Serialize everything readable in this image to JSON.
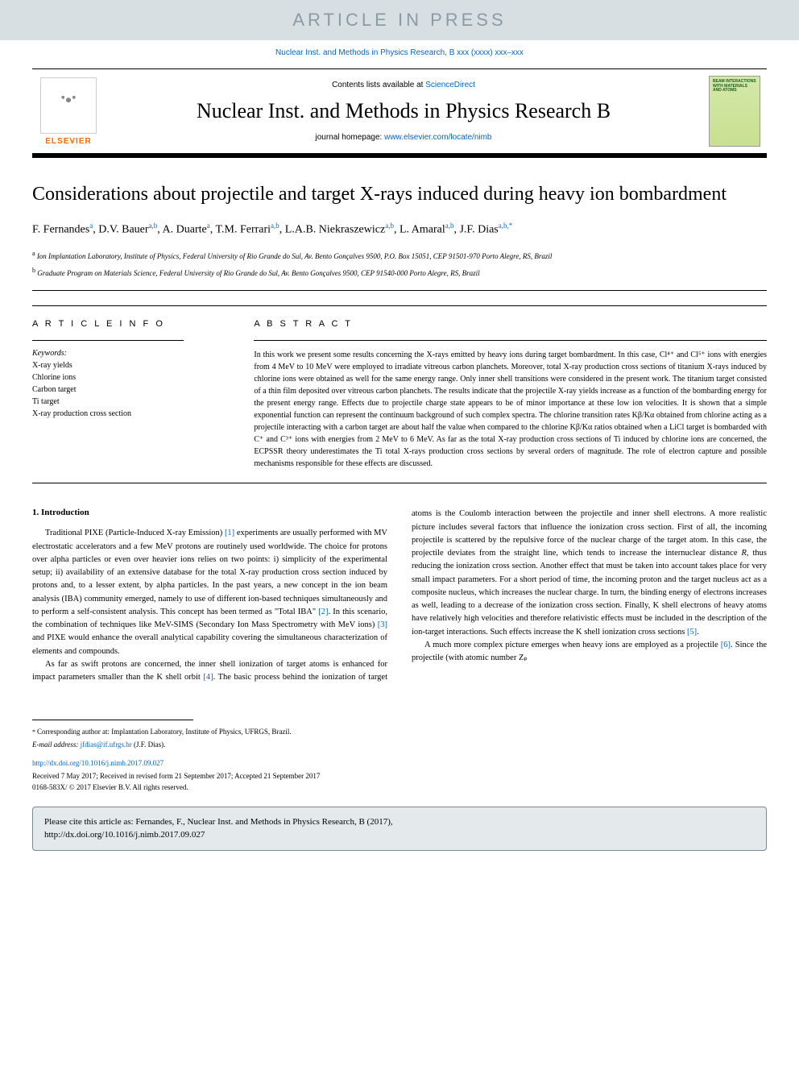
{
  "banner": {
    "text": "ARTICLE IN PRESS"
  },
  "journal_ref": "Nuclear Inst. and Methods in Physics Research, B xxx (xxxx) xxx–xxx",
  "header": {
    "contents_prefix": "Contents lists available at ",
    "contents_link": "ScienceDirect",
    "journal_title": "Nuclear Inst. and Methods in Physics Research B",
    "homepage_prefix": "journal homepage: ",
    "homepage_link": "www.elsevier.com/locate/nimb",
    "elsevier": "ELSEVIER",
    "cover_text": "BEAM INTERACTIONS WITH MATERIALS AND ATOMS"
  },
  "article": {
    "title": "Considerations about projectile and target X-rays induced during heavy ion bombardment",
    "authors_html": "F. Fernandes<sup>a</sup>, D.V. Bauer<sup>a,b</sup>, A. Duarte<sup>a</sup>, T.M. Ferrari<sup>a,b</sup>, L.A.B. Niekraszewicz<sup>a,b</sup>, L. Amaral<sup>a,b</sup>, J.F. Dias<sup>a,b,*</sup>",
    "affiliations": [
      {
        "marker": "a",
        "text": "Ion Implantation Laboratory, Institute of Physics, Federal University of Rio Grande do Sul, Av. Bento Gonçalves 9500, P.O. Box 15051, CEP 91501-970 Porto Alegre, RS, Brazil"
      },
      {
        "marker": "b",
        "text": "Graduate Program on Materials Science, Federal University of Rio Grande do Sul, Av. Bento Gonçalves 9500, CEP 91540-000 Porto Alegre, RS, Brazil"
      }
    ]
  },
  "info": {
    "heading": "A R T I C L E  I N F O",
    "keywords_label": "Keywords:",
    "keywords": [
      "X-ray yields",
      "Chlorine ions",
      "Carbon target",
      "Ti target",
      "X-ray production cross section"
    ]
  },
  "abstract": {
    "heading": "A B S T R A C T",
    "text": "In this work we present some results concerning the X-rays emitted by heavy ions during target bombardment. In this case, Cl⁴⁺ and Cl⁵⁺ ions with energies from 4 MeV to 10 MeV were employed to irradiate vitreous carbon planchets. Moreover, total X-ray production cross sections of titanium X-rays induced by chlorine ions were obtained as well for the same energy range. Only inner shell transitions were considered in the present work. The titanium target consisted of a thin film deposited over vitreous carbon planchets. The results indicate that the projectile X-ray yields increase as a function of the bombarding energy for the present energy range. Effects due to projectile charge state appears to be of minor importance at these low ion velocities. It is shown that a simple exponential function can represent the continuum background of such complex spectra. The chlorine transition rates Kβ/Kα obtained from chlorine acting as a projectile interacting with a carbon target are about half the value when compared to the chlorine Kβ/Kα ratios obtained when a LiCl target is bombarded with C⁺ and C³⁺ ions with energies from 2 MeV to 6 MeV. As far as the total X-ray production cross sections of Ti induced by chlorine ions are concerned, the ECPSSR theory underestimates the Ti total X-rays production cross sections by several orders of magnitude. The role of electron capture and possible mechanisms responsible for these effects are discussed."
  },
  "intro": {
    "heading": "1. Introduction",
    "p1": "Traditional PIXE (Particle-Induced X-ray Emission) [1] experiments are usually performed with MV electrostatic accelerators and a few MeV protons are routinely used worldwide. The choice for protons over alpha particles or even over heavier ions relies on two points: i) simplicity of the experimental setup; ii) availability of an extensive database for the total X-ray production cross section induced by protons and, to a lesser extent, by alpha particles. In the past years, a new concept in the ion beam analysis (IBA) community emerged, namely to use of different ion-based techniques simultaneously and to perform a self-consistent analysis. This concept has been termed as \"Total IBA\" [2]. In this scenario, the combination of techniques like MeV-SIMS (Secondary Ion Mass Spectrometry with MeV ions) [3] and PIXE would enhance the overall analytical capability covering the simultaneous characterization of elements and compounds.",
    "p2": "As far as swift protons are concerned, the inner shell ionization of target atoms is enhanced for impact parameters smaller than the K shell orbit [4]. The basic process behind the ionization of target atoms is the Coulomb interaction between the projectile and inner shell electrons. A more realistic picture includes several factors that influence the ionization cross section. First of all, the incoming projectile is scattered by the repulsive force of the nuclear charge of the target atom. In this case, the projectile deviates from the straight line, which tends to increase the internuclear distance R, thus reducing the ionization cross section. Another effect that must be taken into account takes place for very small impact parameters. For a short period of time, the incoming proton and the target nucleus act as a composite nucleus, which increases the nuclear charge. In turn, the binding energy of electrons increases as well, leading to a decrease of the ionization cross section. Finally, K shell electrons of heavy atoms have relatively high velocities and therefore relativistic effects must be included in the description of the ion-target interactions. Such effects increase the K shell ionization cross sections [5].",
    "p3": "A much more complex picture emerges when heavy ions are employed as a projectile [6]. Since the projectile (with atomic number Zₚ"
  },
  "footer": {
    "corr": "Corresponding author at: Implantation Laboratory, Institute of Physics, UFRGS, Brazil.",
    "email_label": "E-mail address: ",
    "email": "jfdias@if.ufrgs.br",
    "email_name": " (J.F. Dias).",
    "doi": "http://dx.doi.org/10.1016/j.nimb.2017.09.027",
    "received": "Received 7 May 2017; Received in revised form 21 September 2017; Accepted 21 September 2017",
    "copyright": "0168-583X/ © 2017 Elsevier B.V. All rights reserved."
  },
  "citebox": {
    "line1": "Please cite this article as: Fernandes, F., Nuclear Inst. and Methods in Physics Research, B (2017),",
    "line2": "http://dx.doi.org/10.1016/j.nimb.2017.09.027"
  },
  "colors": {
    "banner_bg": "#d7dfe2",
    "banner_text": "#8a9ba5",
    "link": "#0066cc",
    "elsevier_orange": "#ff6600",
    "cover_bg": "#d4e8a8",
    "citebox_bg": "#e4e9ec",
    "citebox_border": "#7a8a94"
  }
}
